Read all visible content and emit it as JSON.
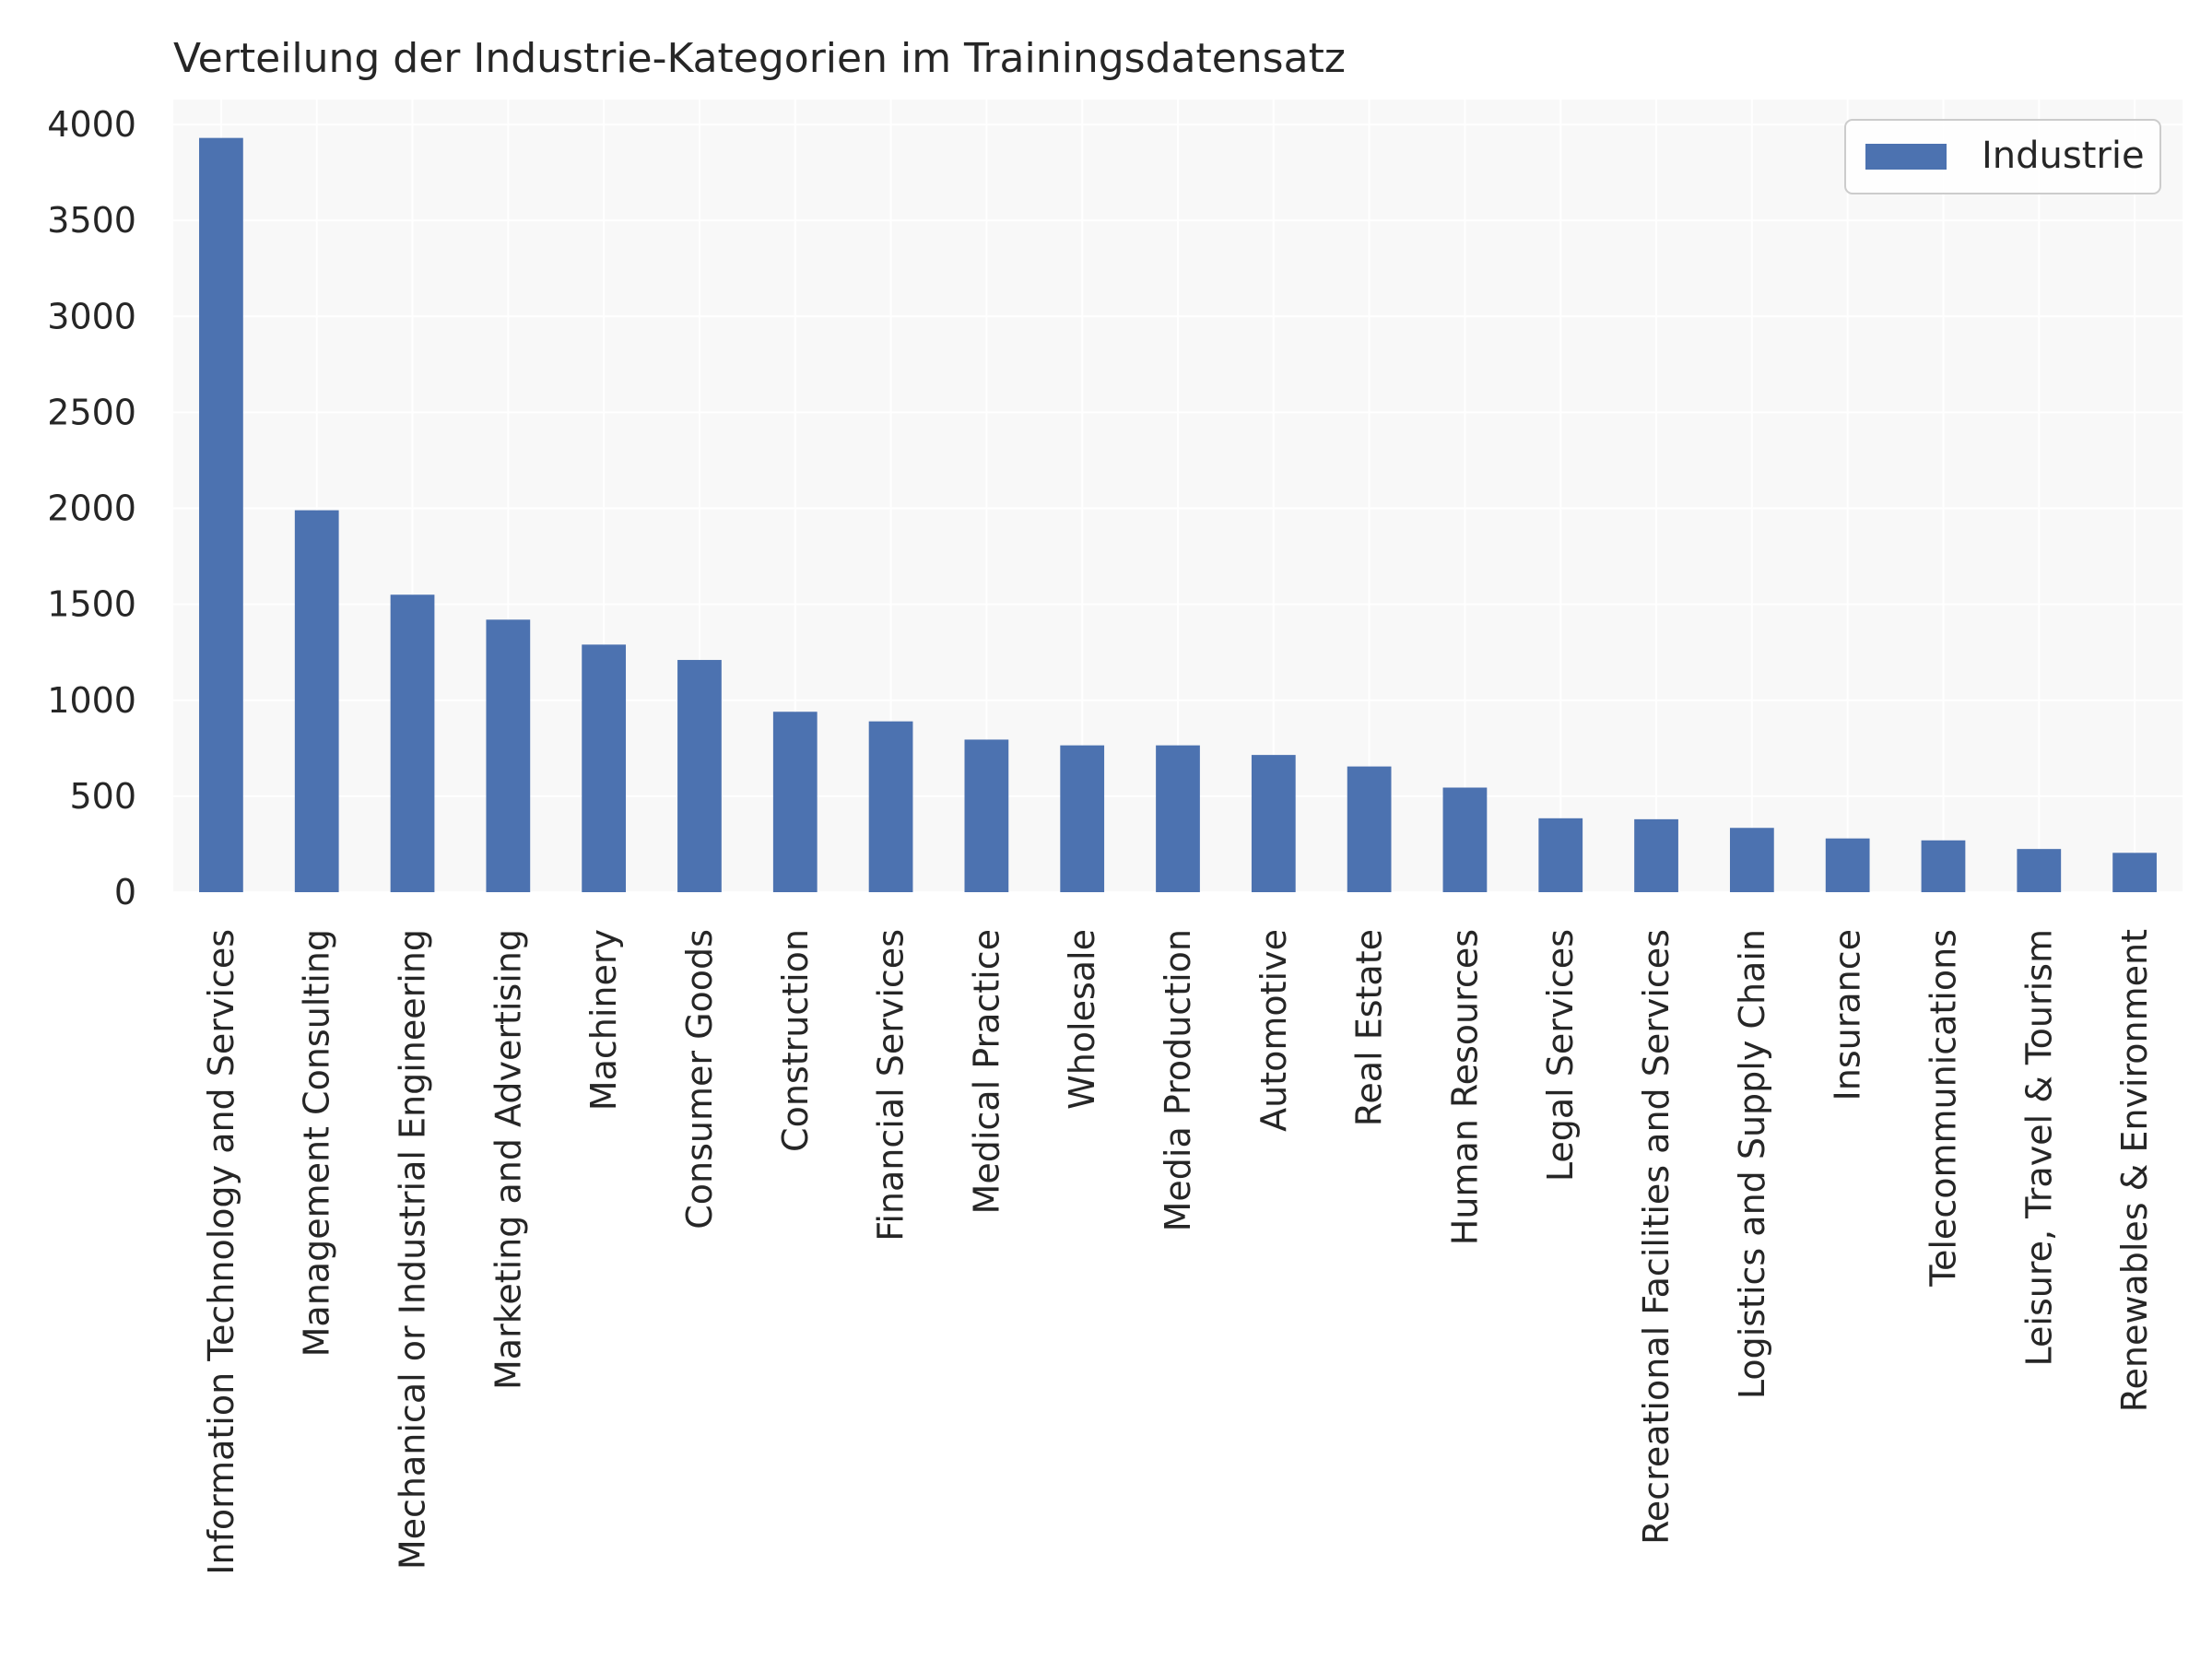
{
  "chart_data": {
    "type": "bar",
    "title": "Verteilung der Industrie-Kategorien im Trainingsdatensatz",
    "xlabel": "",
    "ylabel": "",
    "categories": [
      "Information Technology and Services",
      "Management Consulting",
      "Mechanical or Industrial Engineering",
      "Marketing and Advertising",
      "Machinery",
      "Consumer Goods",
      "Construction",
      "Financial Services",
      "Medical Practice",
      "Wholesale",
      "Media Production",
      "Automotive",
      "Real Estate",
      "Human Resources",
      "Legal Services",
      "Recreational Facilities and Services",
      "Logistics and Supply Chain",
      "Insurance",
      "Telecommunications",
      "Leisure, Travel & Tourism",
      "Renewables & Environment"
    ],
    "series": [
      {
        "name": "Industrie",
        "color": "#4c72b0",
        "values": [
          3930,
          1990,
          1550,
          1420,
          1290,
          1210,
          940,
          890,
          795,
          765,
          765,
          715,
          655,
          545,
          385,
          380,
          335,
          280,
          270,
          225,
          205
        ]
      }
    ],
    "ylim": [
      0,
      4130
    ],
    "yticks": [
      0,
      500,
      1000,
      1500,
      2000,
      2500,
      3000,
      3500,
      4000
    ],
    "grid": true,
    "legend_position": "top-right",
    "colors": {
      "bar": "#4c72b0",
      "plot_background": "#f8f8f8",
      "grid": "#ffffff",
      "text": "#262626"
    }
  }
}
